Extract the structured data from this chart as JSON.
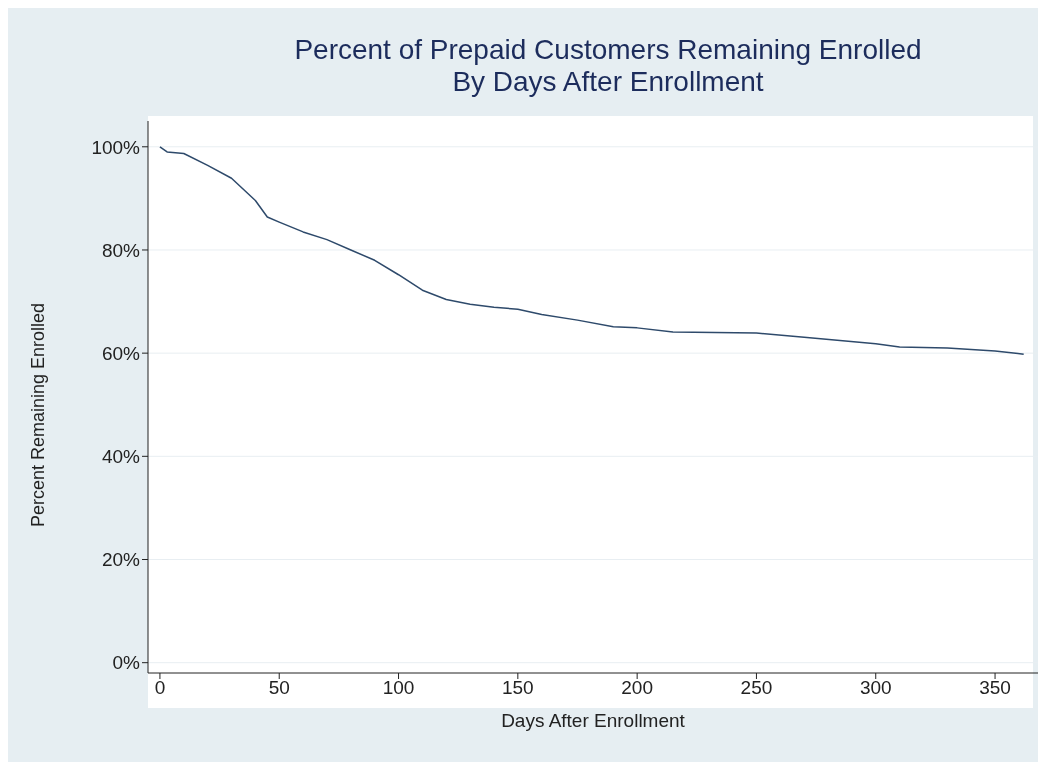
{
  "chart_data": {
    "type": "line",
    "title": "Percent of Prepaid Customers Remaining Enrolled\nBy Days After Enrollment",
    "xlabel": "Days After Enrollment",
    "ylabel": "Percent Remaining Enrolled",
    "x": [
      0,
      3,
      10,
      20,
      30,
      40,
      45,
      50,
      60,
      70,
      80,
      90,
      100,
      110,
      120,
      130,
      140,
      150,
      160,
      175,
      190,
      200,
      215,
      250,
      270,
      300,
      310,
      330,
      350,
      362
    ],
    "series": [
      {
        "color": "#2e4a6b",
        "values": [
          100,
          99,
          98.7,
          96.4,
          93.9,
          89.6,
          86.4,
          85.4,
          83.5,
          82,
          80,
          78,
          75.2,
          72.2,
          70.4,
          69.5,
          68.9,
          68.5,
          67.5,
          66.4,
          65.1,
          64.9,
          64.1,
          63.9,
          63.1,
          61.8,
          61.2,
          61,
          60.4,
          59.8
        ]
      }
    ],
    "xlim": [
      -5,
      368
    ],
    "xticks": [
      0,
      50,
      100,
      150,
      200,
      250,
      300,
      350
    ],
    "ylim": [
      -2,
      105
    ],
    "yticks": [
      {
        "value": 0,
        "label": "0%"
      },
      {
        "value": 20,
        "label": "20%"
      },
      {
        "value": 40,
        "label": "40%"
      },
      {
        "value": 60,
        "label": "60%"
      },
      {
        "value": 80,
        "label": "80%"
      },
      {
        "value": 100,
        "label": "100%"
      }
    ],
    "grid": "y",
    "marker": "none",
    "line_style": "solid"
  }
}
